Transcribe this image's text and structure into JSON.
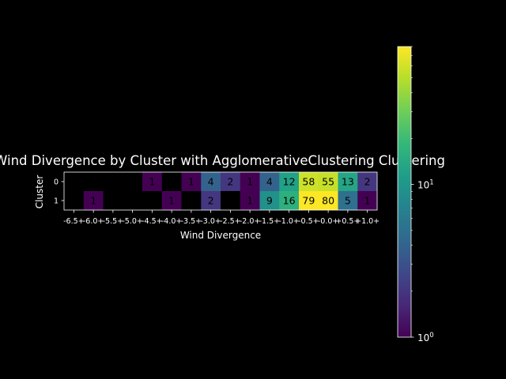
{
  "chart_data": {
    "type": "heatmap",
    "title": "Wind Divergence by Cluster with AgglomerativeClustering Clustering",
    "xlabel": "Wind Divergence",
    "ylabel": "Cluster",
    "x_categories": [
      "-6.5+",
      "-6.0+",
      "-5.5+",
      "-5.0+",
      "-4.5+",
      "-4.0+",
      "-3.5+",
      "-3.0+",
      "-2.5+",
      "-2.0+",
      "-1.5+",
      "-1.0+",
      "-0.5+",
      "-0.0+",
      "+0.5+",
      "+1.0+"
    ],
    "y_categories": [
      "0",
      "1"
    ],
    "values": [
      [
        null,
        null,
        null,
        null,
        1,
        null,
        1,
        4,
        2,
        1,
        4,
        12,
        58,
        55,
        13,
        2
      ],
      [
        null,
        1,
        null,
        null,
        null,
        1,
        null,
        2,
        null,
        1,
        9,
        16,
        79,
        80,
        5,
        1
      ]
    ],
    "colorscale": "viridis",
    "color_scale_type": "log",
    "colorbar": {
      "ticks": [
        "10^0",
        "10^1"
      ],
      "range": [
        1,
        80
      ]
    },
    "background": "#000000",
    "missing_color": "#000000"
  }
}
